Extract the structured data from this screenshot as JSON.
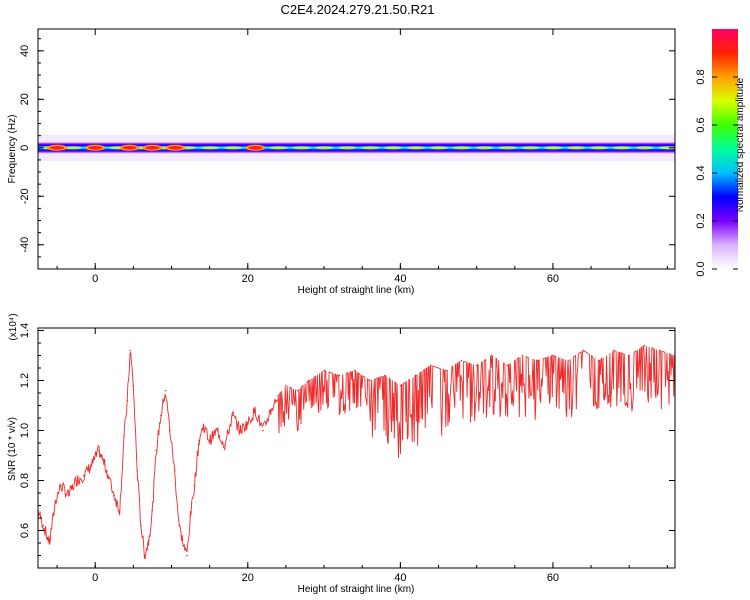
{
  "title": "C2E4.2024.279.21.50.R21",
  "chart_data": [
    {
      "type": "heatmap",
      "xlabel": "Height of straight line (km)",
      "ylabel": "Frequency (Hz)",
      "xlim": [
        -7.5,
        76
      ],
      "ylim": [
        -50,
        49
      ],
      "xticks": [
        "0",
        "20",
        "40",
        "60"
      ],
      "yticks": [
        "40",
        "20",
        "0",
        "-20",
        "-40"
      ],
      "colorbar": {
        "label": "Normalized spectral amplitude",
        "range": [
          0,
          1
        ],
        "ticks": [
          "0.0",
          "0.2",
          "0.4",
          "0.6",
          "0.8"
        ],
        "colormap": [
          "#ffffff",
          "#d9b3ff",
          "#7a00ff",
          "#0000ff",
          "#00c0ff",
          "#00ff9a",
          "#40ff00",
          "#d8ff00",
          "#ffa000",
          "#ff2000",
          "#ff0066"
        ]
      },
      "band": {
        "center_frequency_hz": 0,
        "half_width_hz": 3,
        "hot_spots_km": [
          -5,
          0,
          4.5,
          7.5,
          10.5,
          21
        ]
      }
    },
    {
      "type": "line",
      "xlabel": "Height of straight line (km)",
      "ylabel": "SNR (10 * v/v)",
      "scale_label": "(x10⁴)",
      "xlim": [
        -7.5,
        76
      ],
      "ylim": [
        0.45,
        1.41
      ],
      "xticks": [
        "0",
        "20",
        "40",
        "60"
      ],
      "yticks": [
        "1.4",
        "1.2",
        "1.0",
        "0.8",
        "0.6"
      ],
      "color": "#ee2b2b",
      "series": [
        {
          "x": [
            -7.5,
            -6.8,
            -6.0,
            -5.2,
            -4.5,
            -3.5,
            -2.5,
            -1.5,
            -0.5,
            0.5,
            1.5,
            2.5,
            3.2,
            3.8,
            4.2,
            4.6,
            5.0,
            5.5,
            6.0,
            6.5,
            7.0,
            7.5,
            8.0,
            8.6,
            9.2,
            9.8,
            10.4,
            11.0,
            11.6,
            12.0,
            12.5,
            13.0,
            13.6,
            14.2,
            15.0,
            16.0,
            17.0,
            18.0,
            19.0,
            20.0,
            21.0,
            22.0,
            23.0,
            24.0,
            25.0,
            26.5,
            28.0,
            30.0,
            32.0,
            34.0,
            36.0,
            38.0,
            40.0,
            42.0,
            44.0,
            46.0,
            48.0,
            50.0,
            52.0,
            54.0,
            56.0,
            58.0,
            60.0,
            62.0,
            64.0,
            66.0,
            68.0,
            70.0,
            72.0,
            74.0,
            76.0
          ],
          "y": [
            0.68,
            0.62,
            0.55,
            0.72,
            0.78,
            0.74,
            0.8,
            0.82,
            0.86,
            0.92,
            0.84,
            0.74,
            0.68,
            0.98,
            1.12,
            1.32,
            1.18,
            0.84,
            0.62,
            0.5,
            0.56,
            0.68,
            0.92,
            1.06,
            1.16,
            1.0,
            0.84,
            0.62,
            0.54,
            0.5,
            0.66,
            0.78,
            0.96,
            1.02,
            0.96,
            1.0,
            0.94,
            1.06,
            1.0,
            1.03,
            1.08,
            1.0,
            1.08,
            1.14,
            1.18,
            1.16,
            1.2,
            1.24,
            1.22,
            1.24,
            1.2,
            1.22,
            1.18,
            1.22,
            1.26,
            1.24,
            1.28,
            1.26,
            1.3,
            1.26,
            1.3,
            1.28,
            1.3,
            1.28,
            1.32,
            1.28,
            1.32,
            1.3,
            1.34,
            1.32,
            1.3
          ]
        }
      ]
    }
  ]
}
